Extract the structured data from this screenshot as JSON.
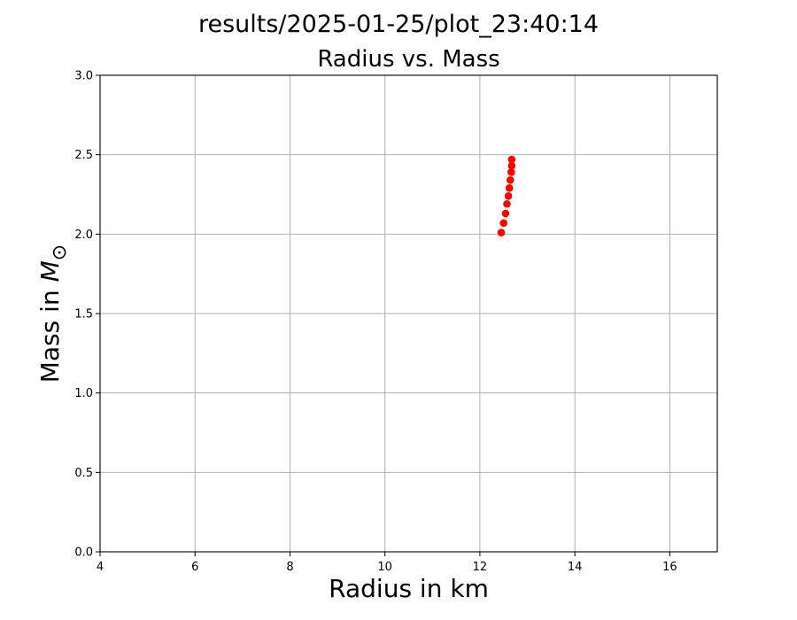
{
  "chart_data": {
    "type": "scatter",
    "suptitle": "results/2025-01-25/plot_23:40:14",
    "title": "Radius vs. Mass",
    "xlabel": "Radius in km",
    "ylabel_main": "Mass in ",
    "ylabel_symbol": "M",
    "ylabel_subscript": "⊙",
    "xlim": [
      4,
      17
    ],
    "ylim": [
      0.0,
      3.0
    ],
    "xticks": [
      4,
      6,
      8,
      10,
      12,
      14,
      16
    ],
    "xtick_labels": [
      "4",
      "6",
      "8",
      "10",
      "12",
      "14",
      "16"
    ],
    "yticks": [
      0.0,
      0.5,
      1.0,
      1.5,
      2.0,
      2.5,
      3.0
    ],
    "ytick_labels": [
      "0.0",
      "0.5",
      "1.0",
      "1.5",
      "2.0",
      "2.5",
      "3.0"
    ],
    "grid": true,
    "marker_color": "#ff0000",
    "points": [
      {
        "x": 12.45,
        "y": 2.01
      },
      {
        "x": 12.5,
        "y": 2.07
      },
      {
        "x": 12.54,
        "y": 2.13
      },
      {
        "x": 12.57,
        "y": 2.19
      },
      {
        "x": 12.6,
        "y": 2.24
      },
      {
        "x": 12.62,
        "y": 2.29
      },
      {
        "x": 12.64,
        "y": 2.34
      },
      {
        "x": 12.66,
        "y": 2.39
      },
      {
        "x": 12.67,
        "y": 2.43
      },
      {
        "x": 12.67,
        "y": 2.47
      }
    ]
  }
}
